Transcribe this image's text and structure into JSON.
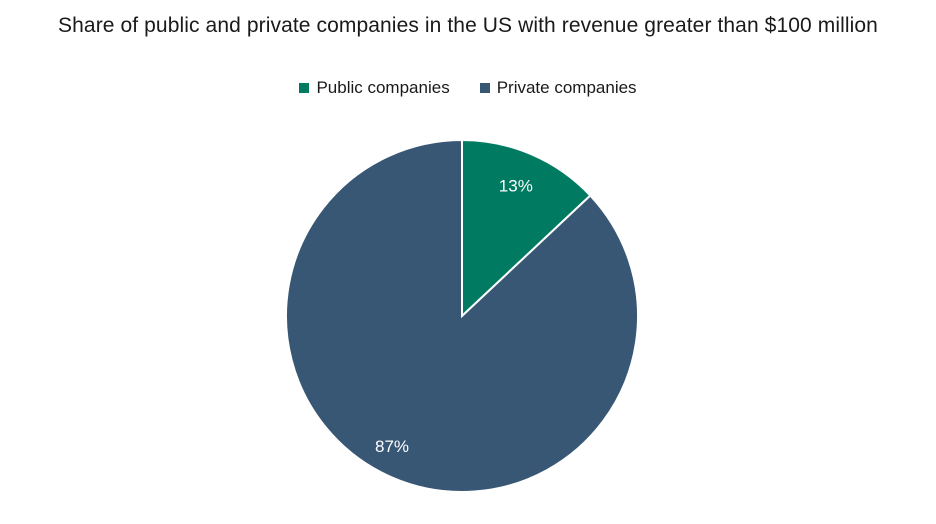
{
  "chart_data": {
    "type": "pie",
    "title": "Share of public and private companies in the US with revenue greater than $100 million",
    "legend_position": "top-center",
    "slices": [
      {
        "name": "Public companies",
        "value": 13,
        "label": "13%",
        "color": "#007a60"
      },
      {
        "name": "Private companies",
        "value": 87,
        "label": "87%",
        "color": "#385775"
      }
    ]
  }
}
